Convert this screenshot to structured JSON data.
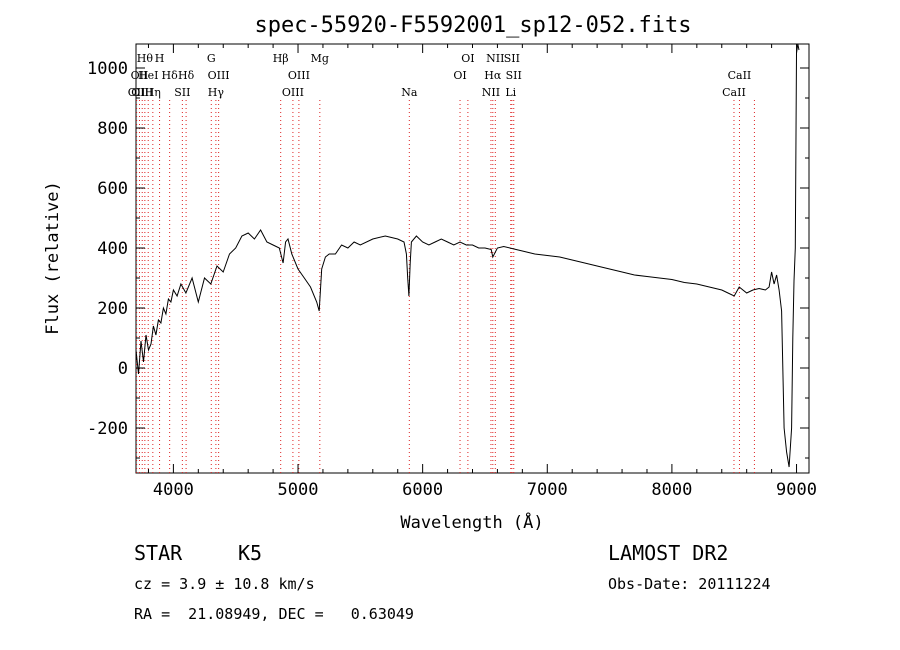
{
  "chart_data": {
    "type": "line",
    "title": "spec-55920-F5592001_sp12-052.fits",
    "xlabel": "Wavelength (Å)",
    "ylabel": "Flux (relative)",
    "xlim": [
      3700,
      9100
    ],
    "ylim": [
      -350,
      1080
    ],
    "xticks": [
      4000,
      5000,
      6000,
      7000,
      8000,
      9000
    ],
    "yticks": [
      -200,
      0,
      200,
      400,
      600,
      800,
      1000
    ],
    "grid": false,
    "series": [
      {
        "x": [
          3700,
          3720,
          3740,
          3760,
          3780,
          3800,
          3820,
          3840,
          3860,
          3880,
          3900,
          3920,
          3940,
          3960,
          3980,
          4000,
          4030,
          4060,
          4100,
          4150,
          4200,
          4250,
          4300,
          4350,
          4400,
          4450,
          4500,
          4550,
          4600,
          4650,
          4700,
          4750,
          4800,
          4850,
          4880,
          4900,
          4920,
          4950,
          5000,
          5050,
          5100,
          5150,
          5170,
          5190,
          5220,
          5250,
          5300,
          5350,
          5400,
          5450,
          5500,
          5600,
          5700,
          5800,
          5850,
          5870,
          5880,
          5890,
          5900,
          5910,
          5950,
          6000,
          6050,
          6100,
          6150,
          6200,
          6250,
          6300,
          6350,
          6400,
          6450,
          6500,
          6550,
          6563,
          6600,
          6650,
          6700,
          6750,
          6800,
          6900,
          7000,
          7100,
          7200,
          7300,
          7400,
          7500,
          7600,
          7700,
          7800,
          7900,
          8000,
          8100,
          8200,
          8300,
          8400,
          8450,
          8500,
          8540,
          8600,
          8650,
          8700,
          8750,
          8780,
          8800,
          8820,
          8840,
          8860,
          8880,
          8900,
          8920,
          8940,
          8960,
          8970,
          8980,
          8990,
          9000,
          9010,
          9020
        ],
        "y": [
          60,
          -20,
          90,
          20,
          110,
          60,
          80,
          140,
          110,
          160,
          150,
          200,
          180,
          230,
          220,
          260,
          240,
          280,
          250,
          300,
          220,
          300,
          280,
          340,
          320,
          380,
          400,
          440,
          450,
          430,
          460,
          420,
          410,
          400,
          350,
          420,
          430,
          380,
          330,
          300,
          270,
          220,
          190,
          330,
          370,
          380,
          380,
          410,
          400,
          420,
          410,
          430,
          440,
          430,
          420,
          380,
          300,
          240,
          350,
          420,
          440,
          420,
          410,
          420,
          430,
          420,
          410,
          420,
          410,
          410,
          400,
          400,
          395,
          370,
          400,
          405,
          400,
          395,
          390,
          380,
          375,
          370,
          360,
          350,
          340,
          330,
          320,
          310,
          305,
          300,
          295,
          285,
          280,
          270,
          260,
          250,
          240,
          270,
          250,
          260,
          265,
          260,
          270,
          320,
          280,
          310,
          260,
          190,
          -200,
          -280,
          -330,
          -200,
          100,
          290,
          400,
          1050,
          1080,
          1060
        ]
      }
    ],
    "line_markers": [
      {
        "wl": 3705,
        "row": 3,
        "label": "OII"
      },
      {
        "wl": 3728,
        "row": 2,
        "label": "OII"
      },
      {
        "wl": 3750,
        "row": 3,
        "label": "OIII"
      },
      {
        "wl": 3771,
        "row": 1,
        "label": "Hθ"
      },
      {
        "wl": 3798,
        "row": 2,
        "label": "HeI"
      },
      {
        "wl": 3835,
        "row": 3,
        "label": "Hη"
      },
      {
        "wl": 3889,
        "row": 1,
        "label": "H"
      },
      {
        "wl": 3970,
        "row": 2,
        "label": "Hδ"
      },
      {
        "wl": 4072,
        "row": 3,
        "label": "SII"
      },
      {
        "wl": 4102,
        "row": 2,
        "label": "Hδ"
      },
      {
        "wl": 4304,
        "row": 1,
        "label": "G"
      },
      {
        "wl": 4341,
        "row": 3,
        "label": "Hγ"
      },
      {
        "wl": 4363,
        "row": 2,
        "label": "OIII"
      },
      {
        "wl": 4861,
        "row": 1,
        "label": "Hβ"
      },
      {
        "wl": 4959,
        "row": 3,
        "label": "OIII"
      },
      {
        "wl": 5007,
        "row": 2,
        "label": "OIII"
      },
      {
        "wl": 5175,
        "row": 1,
        "label": "Mg"
      },
      {
        "wl": 5893,
        "row": 3,
        "label": "Na"
      },
      {
        "wl": 6300,
        "row": 2,
        "label": "OI"
      },
      {
        "wl": 6363,
        "row": 1,
        "label": "OI"
      },
      {
        "wl": 6548,
        "row": 3,
        "label": "NII"
      },
      {
        "wl": 6563,
        "row": 2,
        "label": "Hα"
      },
      {
        "wl": 6583,
        "row": 1,
        "label": "NII"
      },
      {
        "wl": 6707,
        "row": 3,
        "label": "Li"
      },
      {
        "wl": 6716,
        "row": 1,
        "label": "SII"
      },
      {
        "wl": 6731,
        "row": 2,
        "label": "SII"
      },
      {
        "wl": 8498,
        "row": 3,
        "label": "CaII"
      },
      {
        "wl": 8542,
        "row": 2,
        "label": "CaII"
      },
      {
        "wl": 8662,
        "row": 2,
        "label": ""
      }
    ]
  },
  "info": {
    "object_type": "STAR",
    "subclass": "K5",
    "survey": "LAMOST DR2",
    "cz": "cz = 3.9 ± 10.8 km/s",
    "obs_date": "Obs-Date: 20111224",
    "coords": "RA =  21.08949, DEC =   0.63049"
  }
}
